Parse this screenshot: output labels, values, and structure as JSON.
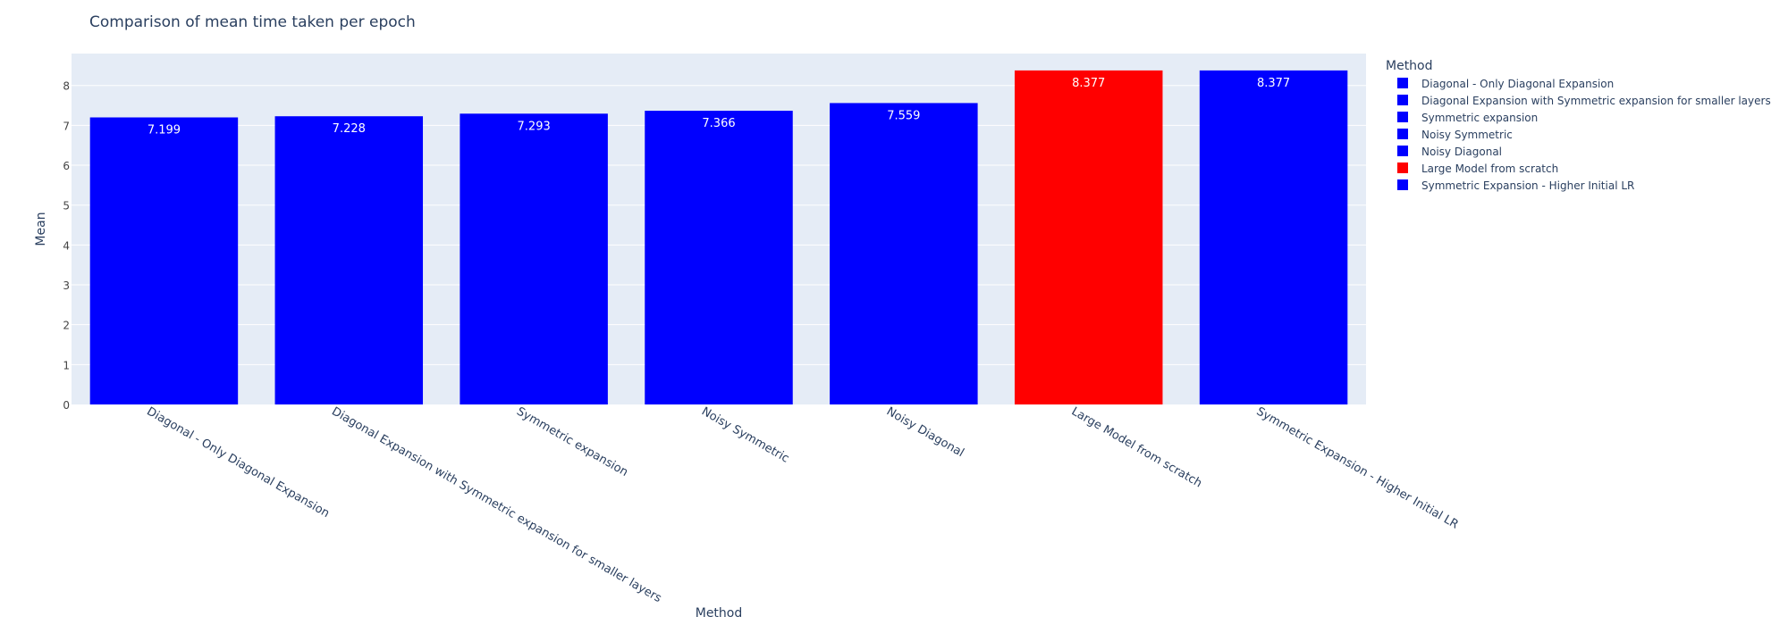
{
  "chart_data": {
    "type": "bar",
    "title": "Comparison of mean time taken per epoch",
    "xlabel": "Method",
    "ylabel": "Mean",
    "ylim": [
      0,
      8.8
    ],
    "yticks": [
      0,
      1,
      2,
      3,
      4,
      5,
      6,
      7,
      8
    ],
    "grid": true,
    "legend": {
      "title": "Method",
      "placement": "right"
    },
    "categories": [
      "Diagonal - Only Diagonal Expansion",
      "Diagonal Expansion with Symmetric expansion for smaller layers",
      "Symmetric expansion",
      "Noisy Symmetric",
      "Noisy Diagonal",
      "Large Model from scratch",
      "Symmetric Expansion - Higher Initial LR"
    ],
    "values": [
      7.199,
      7.228,
      7.293,
      7.366,
      7.559,
      8.377,
      8.377
    ],
    "data_labels": [
      "7.199",
      "7.228",
      "7.293",
      "7.366",
      "7.559",
      "8.377",
      "8.377"
    ],
    "colors": [
      "#0000ff",
      "#0000ff",
      "#0000ff",
      "#0000ff",
      "#0000ff",
      "#ff0000",
      "#0000ff"
    ],
    "plot_background": "#e5ecf6",
    "text_color": "#2a3f5f"
  }
}
